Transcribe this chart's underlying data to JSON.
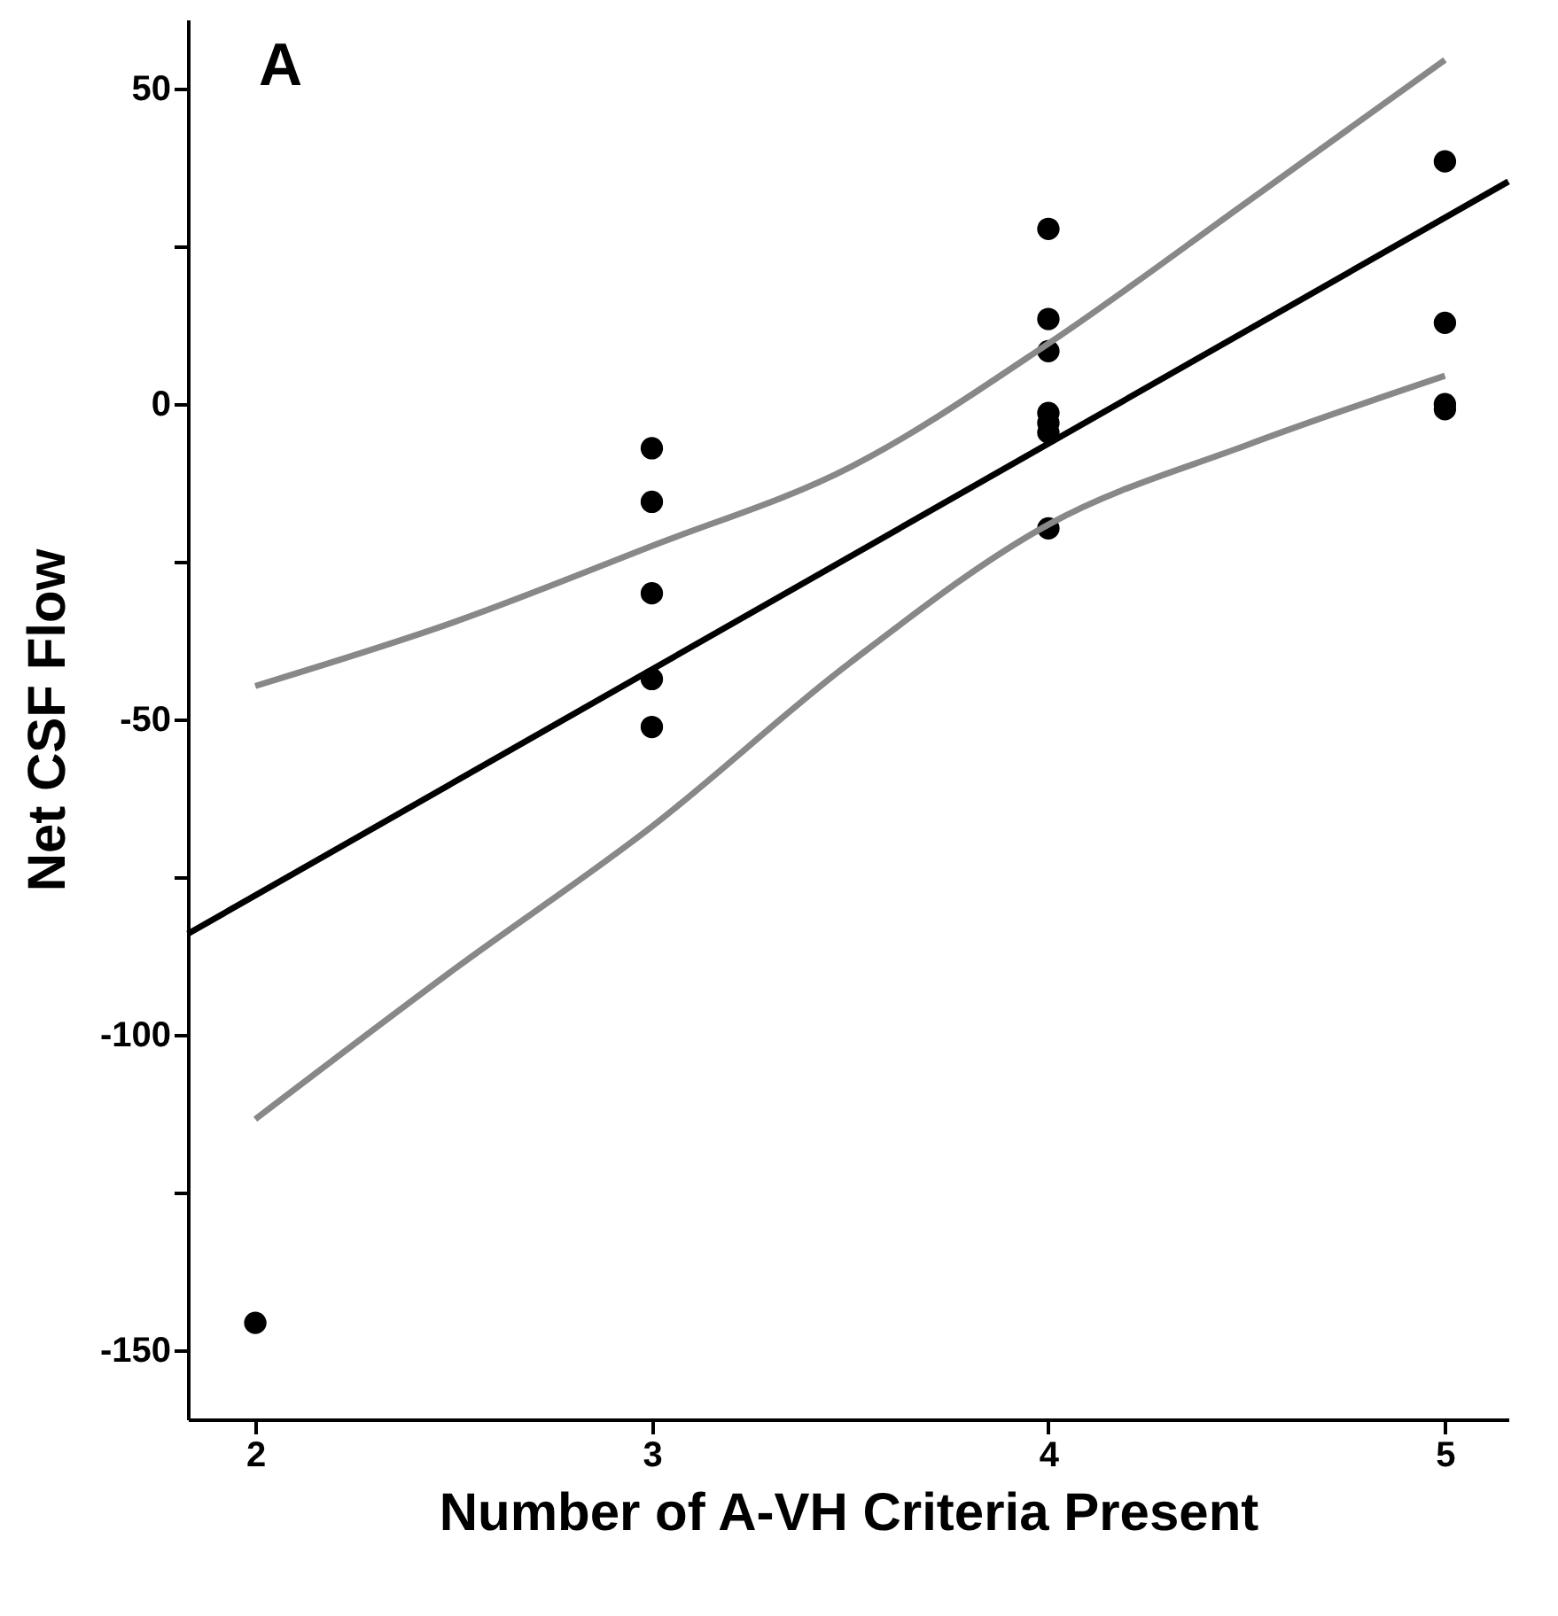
{
  "chart_data": {
    "type": "scatter",
    "xlabel": "Number of A-VH Criteria Present",
    "ylabel": "Net CSF Flow",
    "annotations": [
      "A"
    ],
    "xlim": [
      1.83,
      5.16
    ],
    "ylim": [
      -161,
      61
    ],
    "xticks": [
      2,
      3,
      4,
      5
    ],
    "yticks": [
      {
        "value": -150,
        "label": "-150"
      },
      {
        "value": -125,
        "label": null
      },
      {
        "value": -100,
        "label": "-100"
      },
      {
        "value": -75,
        "label": null
      },
      {
        "value": -50,
        "label": "-50"
      },
      {
        "value": -25,
        "label": null
      },
      {
        "value": 0,
        "label": "0"
      },
      {
        "value": 25,
        "label": null
      },
      {
        "value": 50,
        "label": "50"
      }
    ],
    "grid": false,
    "marker": "circle",
    "series": [
      {
        "color": "#000000",
        "x": [
          2,
          3,
          3,
          3,
          3,
          3,
          4,
          4,
          4,
          4,
          4,
          4,
          4,
          5,
          5,
          5,
          5
        ],
        "values": [
          -145.7,
          -7,
          -15.5,
          -30,
          -43.6,
          -51.2,
          27.8,
          13.5,
          8.4,
          -1.4,
          -3,
          -4.5,
          -19.7,
          38.5,
          12.9,
          0,
          -0.8
        ]
      },
      {
        "type": "line",
        "color": "#000000",
        "marker": "none",
        "x": [
          1.83,
          5.16
        ],
        "values": [
          -84,
          35.3
        ]
      },
      {
        "type": "line",
        "color": "#888888",
        "marker": "none",
        "x": [
          2,
          2.5,
          3,
          3.5,
          4,
          4.5,
          5
        ],
        "values": [
          -44.7,
          -34.6,
          -22.5,
          -10,
          9.6,
          32,
          54.6
        ]
      },
      {
        "type": "line",
        "color": "#888888",
        "marker": "none",
        "x": [
          2,
          2.5,
          3,
          3.5,
          4,
          4.5,
          5
        ],
        "values": [
          -113.4,
          -89.7,
          -67,
          -41,
          -19.1,
          -6.5,
          4.5
        ]
      }
    ]
  }
}
